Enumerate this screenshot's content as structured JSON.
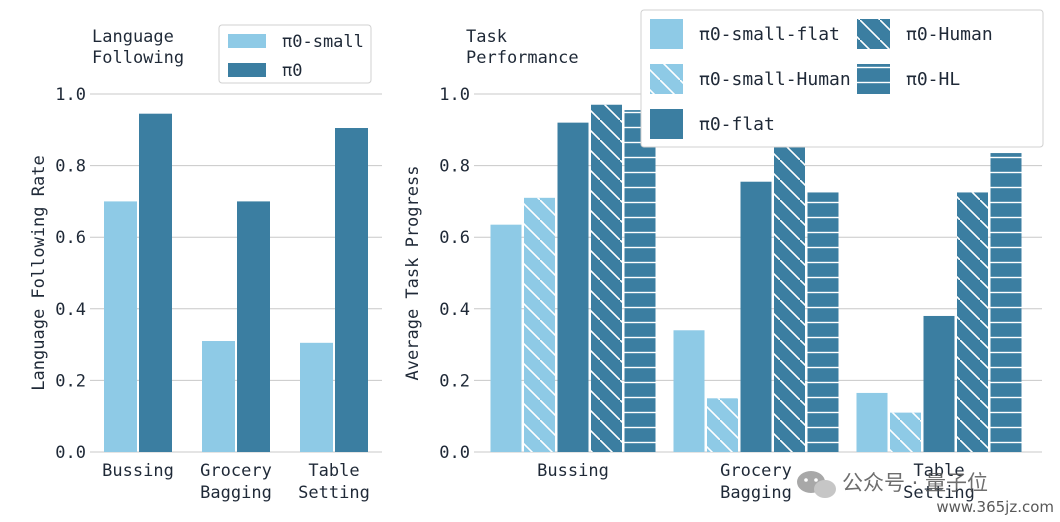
{
  "chart_data": [
    {
      "type": "bar",
      "title": "Language\nFollowing",
      "ylabel": "Language Following Rate",
      "xlabel": "",
      "ylim": [
        0,
        1.0
      ],
      "yticks": [
        "0.0",
        "0.2",
        "0.4",
        "0.6",
        "0.8",
        "1.0"
      ],
      "grid": "horizontal",
      "legend_position": "top-right",
      "categories": [
        "Bussing",
        "Grocery\nBagging",
        "Table\nSetting"
      ],
      "series": [
        {
          "name": "π0-small",
          "color": "#8ecae6",
          "hatch": "none",
          "values": [
            0.7,
            0.31,
            0.305
          ]
        },
        {
          "name": "π0",
          "color": "#3b7ea1",
          "hatch": "none",
          "values": [
            0.945,
            0.7,
            0.905
          ]
        }
      ]
    },
    {
      "type": "bar",
      "title": "Task\nPerformance",
      "ylabel": "Average Task Progress",
      "xlabel": "",
      "ylim": [
        0,
        1.0
      ],
      "yticks": [
        "0.0",
        "0.2",
        "0.4",
        "0.6",
        "0.8",
        "1.0"
      ],
      "grid": "horizontal",
      "legend_position": "top-right",
      "categories": [
        "Bussing",
        "Grocery\nBagging",
        "Table\nSetting"
      ],
      "series": [
        {
          "name": "π0-small-flat",
          "color": "#8ecae6",
          "hatch": "none",
          "values": [
            0.635,
            0.34,
            0.165
          ]
        },
        {
          "name": "π0-small-Human",
          "color": "#8ecae6",
          "hatch": "diagonal",
          "values": [
            0.71,
            0.15,
            0.11
          ]
        },
        {
          "name": "π0-flat",
          "color": "#3b7ea1",
          "hatch": "none",
          "values": [
            0.92,
            0.755,
            0.38
          ]
        },
        {
          "name": "π0-Human",
          "color": "#3b7ea1",
          "hatch": "diagonal",
          "values": [
            0.97,
            0.865,
            0.725
          ]
        },
        {
          "name": "π0-HL",
          "color": "#3b7ea1",
          "hatch": "horizontal",
          "values": [
            0.955,
            0.725,
            0.835
          ]
        }
      ]
    }
  ],
  "watermark": {
    "text": "公众号 · 量子位",
    "url": "www.365jz.com"
  }
}
